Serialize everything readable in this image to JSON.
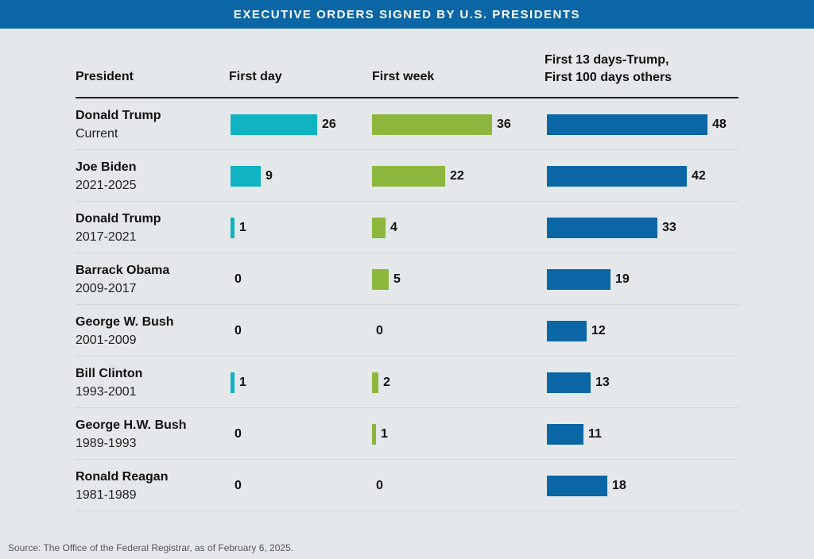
{
  "title": "EXECUTIVE ORDERS SIGNED BY U.S. PRESIDENTS",
  "headers": {
    "president": "President",
    "first_day": "First day",
    "first_week": "First week",
    "extended_line1": "First 13 days-Trump,",
    "extended_line2": "First 100 days others"
  },
  "source": "Source: The Office of the Federal Registrar, as of February 6, 2025.",
  "colors": {
    "first_day": "#0fb3c2",
    "first_week": "#8cb73c",
    "extended": "#0b66a6",
    "title_bar": "#0b66a6",
    "background": "#e4e8ea"
  },
  "chart_data": {
    "type": "bar",
    "title": "EXECUTIVE ORDERS SIGNED BY U.S. PRESIDENTS",
    "categories": [
      "Donald Trump (Current)",
      "Joe Biden (2021-2025)",
      "Donald Trump (2017-2021)",
      "Barrack Obama (2009-2017)",
      "George W. Bush (2001-2009)",
      "Bill Clinton (1993-2001)",
      "George H.W. Bush (1989-1993)",
      "Ronald Reagan (1981-1989)"
    ],
    "rows": [
      {
        "name": "Donald Trump",
        "term": "Current",
        "first_day": 26,
        "first_week": 36,
        "extended": 48
      },
      {
        "name": "Joe Biden",
        "term": "2021-2025",
        "first_day": 9,
        "first_week": 22,
        "extended": 42
      },
      {
        "name": "Donald Trump",
        "term": "2017-2021",
        "first_day": 1,
        "first_week": 4,
        "extended": 33
      },
      {
        "name": "Barrack Obama",
        "term": "2009-2017",
        "first_day": 0,
        "first_week": 5,
        "extended": 19
      },
      {
        "name": "George W. Bush",
        "term": "2001-2009",
        "first_day": 0,
        "first_week": 0,
        "extended": 12
      },
      {
        "name": "Bill Clinton",
        "term": "1993-2001",
        "first_day": 1,
        "first_week": 2,
        "extended": 13
      },
      {
        "name": "George H.W. Bush",
        "term": "1989-1993",
        "first_day": 0,
        "first_week": 1,
        "extended": 11
      },
      {
        "name": "Ronald Reagan",
        "term": "1981-1989",
        "first_day": 0,
        "first_week": 0,
        "extended": 18
      }
    ],
    "series": [
      {
        "name": "First day",
        "key": "first_day",
        "values": [
          26,
          9,
          1,
          0,
          0,
          1,
          0,
          0
        ]
      },
      {
        "name": "First week",
        "key": "first_week",
        "values": [
          36,
          22,
          4,
          5,
          0,
          2,
          1,
          0
        ]
      },
      {
        "name": "First 13 days-Trump, First 100 days others",
        "key": "extended",
        "values": [
          48,
          42,
          33,
          19,
          12,
          13,
          11,
          18
        ]
      }
    ]
  }
}
